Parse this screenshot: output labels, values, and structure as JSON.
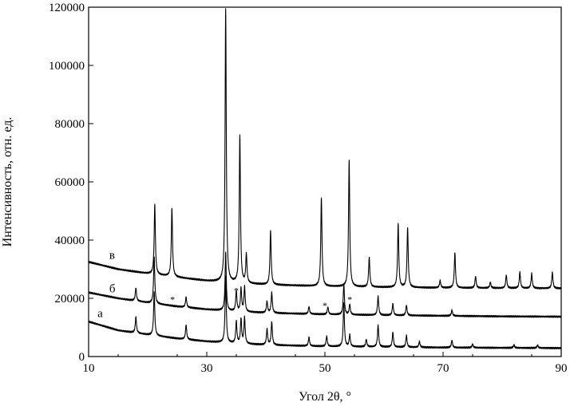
{
  "chart_data": {
    "type": "line",
    "xlabel": "Угол 2θ, °",
    "ylabel": "Интенсивность, отн. ед.",
    "xlim": [
      10,
      90
    ],
    "ylim": [
      0,
      120000
    ],
    "x_ticks": [
      10,
      30,
      50,
      70,
      90
    ],
    "y_ticks": [
      0,
      20000,
      40000,
      60000,
      80000,
      100000,
      120000
    ],
    "x_tick_labels": [
      "10",
      "30",
      "50",
      "70",
      "90"
    ],
    "y_tick_labels": [
      "0",
      "20000",
      "40000",
      "60000",
      "80000",
      "100000",
      "120000"
    ],
    "grid": false,
    "legend": "none",
    "series": [
      {
        "name": "а",
        "label_at": [
          11.5,
          13500
        ],
        "background": [
          [
            10,
            12000
          ],
          [
            15,
            9000
          ],
          [
            20,
            7500
          ],
          [
            25,
            6200
          ],
          [
            30,
            5200
          ],
          [
            35,
            4500
          ],
          [
            40,
            4000
          ],
          [
            50,
            3500
          ],
          [
            60,
            3300
          ],
          [
            70,
            3100
          ],
          [
            80,
            3000
          ],
          [
            90,
            2900
          ]
        ],
        "peaks": [
          [
            18.0,
            5500
          ],
          [
            21.1,
            15000
          ],
          [
            26.5,
            5000
          ],
          [
            33.2,
            23000
          ],
          [
            35.0,
            7500
          ],
          [
            35.8,
            8500
          ],
          [
            36.4,
            9000
          ],
          [
            40.2,
            5500
          ],
          [
            41.0,
            8000
          ],
          [
            47.3,
            3000
          ],
          [
            50.3,
            3500
          ],
          [
            53.2,
            15000
          ],
          [
            54.2,
            4000
          ],
          [
            57.0,
            2500
          ],
          [
            59.0,
            7500
          ],
          [
            61.5,
            5000
          ],
          [
            63.8,
            4000
          ],
          [
            66.0,
            2000
          ],
          [
            71.5,
            2500
          ],
          [
            75.0,
            1200
          ],
          [
            82.0,
            1000
          ],
          [
            86.0,
            1000
          ]
        ]
      },
      {
        "name": "б",
        "label_at": [
          13.5,
          22000
        ],
        "background": [
          [
            10,
            22000
          ],
          [
            15,
            20000
          ],
          [
            20,
            18500
          ],
          [
            25,
            17200
          ],
          [
            30,
            16200
          ],
          [
            35,
            15500
          ],
          [
            40,
            15000
          ],
          [
            50,
            14500
          ],
          [
            60,
            14200
          ],
          [
            70,
            14000
          ],
          [
            80,
            13800
          ],
          [
            90,
            13700
          ]
        ],
        "peaks": [
          [
            18.0,
            4500
          ],
          [
            21.1,
            16000
          ],
          [
            26.5,
            3500
          ],
          [
            33.2,
            20000
          ],
          [
            35.0,
            7000
          ],
          [
            35.8,
            8000
          ],
          [
            36.4,
            8500
          ],
          [
            40.2,
            4000
          ],
          [
            41.0,
            7000
          ],
          [
            47.3,
            2500
          ],
          [
            50.5,
            2500
          ],
          [
            53.2,
            10500
          ],
          [
            54.2,
            3500
          ],
          [
            59.0,
            6500
          ],
          [
            61.5,
            4000
          ],
          [
            63.8,
            3500
          ],
          [
            71.5,
            2000
          ]
        ]
      },
      {
        "name": "в",
        "label_at": [
          13.5,
          33500
        ],
        "background": [
          [
            10,
            32500
          ],
          [
            15,
            30000
          ],
          [
            20,
            28500
          ],
          [
            25,
            27200
          ],
          [
            30,
            26000
          ],
          [
            35,
            25200
          ],
          [
            40,
            24700
          ],
          [
            50,
            24100
          ],
          [
            60,
            23800
          ],
          [
            70,
            23600
          ],
          [
            80,
            23500
          ],
          [
            90,
            23400
          ]
        ],
        "peaks": [
          [
            21.2,
            24000
          ],
          [
            24.1,
            23500
          ],
          [
            33.2,
            93800
          ],
          [
            35.6,
            50500
          ],
          [
            36.7,
            10000
          ],
          [
            40.8,
            18500
          ],
          [
            49.4,
            30500
          ],
          [
            54.1,
            43400
          ],
          [
            57.5,
            10200
          ],
          [
            62.4,
            21700
          ],
          [
            64.0,
            20600
          ],
          [
            69.5,
            2500
          ],
          [
            72.0,
            12000
          ],
          [
            75.5,
            4000
          ],
          [
            78.0,
            2000
          ],
          [
            80.7,
            4500
          ],
          [
            83.0,
            5500
          ],
          [
            85.0,
            5000
          ],
          [
            88.5,
            5500
          ]
        ]
      }
    ],
    "annotations": [
      {
        "text": "*",
        "x": 24.2,
        "y": 18500
      },
      {
        "text": "*",
        "x": 35.0,
        "y": 21500
      },
      {
        "text": "*",
        "x": 50.0,
        "y": 16500
      },
      {
        "text": "*",
        "x": 54.2,
        "y": 18500
      }
    ]
  }
}
